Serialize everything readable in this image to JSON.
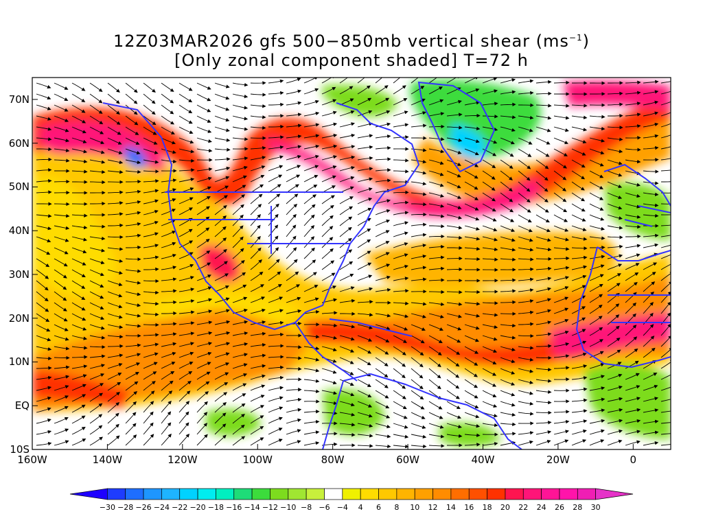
{
  "title": {
    "line1_prefix": "12Z03MAR2026 gfs 500−850mb vertical shear (ms",
    "line1_sup": "−1",
    "line1_suffix": ")",
    "line2": "[Only zonal component shaded] T=72 h"
  },
  "map": {
    "lat_labels": [
      "70N",
      "60N",
      "50N",
      "40N",
      "30N",
      "20N",
      "10N",
      "EQ",
      "10S"
    ],
    "lon_labels": [
      "160W",
      "140W",
      "120W",
      "100W",
      "80W",
      "60W",
      "40W",
      "20W",
      "0"
    ],
    "lon_range": [
      -160,
      10
    ],
    "lat_range": [
      -10,
      75
    ],
    "border_color": "#3333ff",
    "streamline_color": "#000000"
  },
  "colorbar": {
    "labels": [
      "−30",
      "−28",
      "−26",
      "−24",
      "−22",
      "−20",
      "−18",
      "−16",
      "−14",
      "−12",
      "−10",
      "−8",
      "−6",
      "−4",
      "4",
      "6",
      "8",
      "10",
      "12",
      "14",
      "16",
      "18",
      "20",
      "22",
      "24",
      "26",
      "28",
      "30"
    ],
    "colors": [
      "#1e00ff",
      "#1e3cff",
      "#1e6eff",
      "#1e96ff",
      "#1eb4ff",
      "#00d2ff",
      "#00ecf0",
      "#00f0c0",
      "#1edc78",
      "#3cdc3c",
      "#7ddc1e",
      "#a0e632",
      "#c8f03c",
      "#ffffff",
      "#f0f000",
      "#ffdc00",
      "#ffc800",
      "#ffb400",
      "#ffa000",
      "#ff8c00",
      "#ff6e00",
      "#ff5000",
      "#ff3200",
      "#ff1450",
      "#ff1478",
      "#ff1496",
      "#ff14aa",
      "#f01eb4",
      "#e632c8"
    ]
  }
}
